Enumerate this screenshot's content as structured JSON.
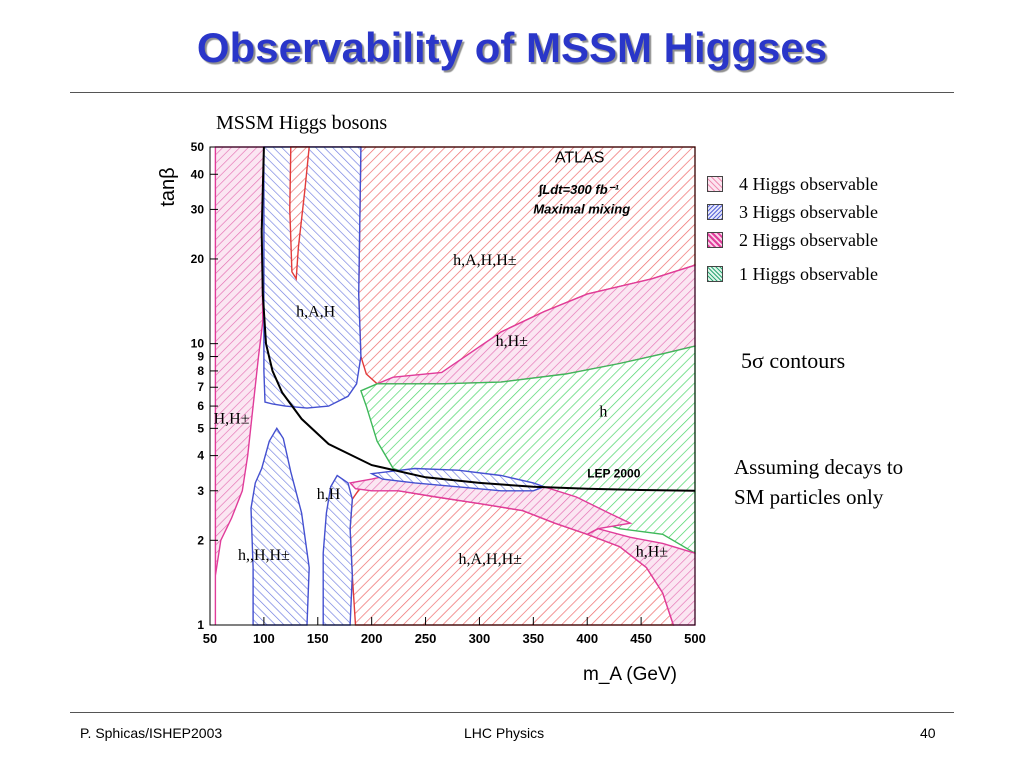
{
  "slide": {
    "title": "Observability of MSSM Higgses",
    "footer_left": "P. Sphicas/ISHEP2003",
    "footer_center": "LHC Physics",
    "footer_right": "40"
  },
  "plot_header": "MSSM  Higgs  bosons",
  "side": {
    "contours": "5σ contours",
    "note": "Assuming decays to SM particles only"
  },
  "legend": [
    {
      "label": "4 Higgs observable",
      "color": "#f08fb4"
    },
    {
      "label": "3 Higgs observable",
      "color": "#5a66d8"
    },
    {
      "label": "2 Higgs observable",
      "color": "#e03c9a"
    },
    {
      "label": "1 Higgs observable",
      "color": "#2fa877"
    }
  ],
  "chart_data": {
    "type": "area",
    "xlabel": "m_A (GeV)",
    "ylabel": "tanβ",
    "xlim": [
      50,
      500
    ],
    "ylim": [
      1,
      50
    ],
    "yscale": "log",
    "xticks": [
      50,
      100,
      150,
      200,
      250,
      300,
      350,
      400,
      450,
      500
    ],
    "yticks": [
      1,
      2,
      3,
      4,
      5,
      6,
      7,
      8,
      9,
      10,
      20,
      30,
      40,
      50
    ],
    "annotation": {
      "experiment": "ATLAS",
      "luminosity": "∫Ldt=300 fb⁻¹",
      "scenario": "Maximal mixing",
      "lep_label": "LEP 2000"
    },
    "region_labels": [
      {
        "text": "h,A,H,H±",
        "x": 305,
        "y": 19
      },
      {
        "text": "h,A,H",
        "x": 148,
        "y": 12.5
      },
      {
        "text": "h,H±",
        "x": 330,
        "y": 9.8
      },
      {
        "text": "h",
        "x": 415,
        "y": 5.5
      },
      {
        "text": "H,H±",
        "x": 70,
        "y": 5.2
      },
      {
        "text": "h,H",
        "x": 160,
        "y": 2.8
      },
      {
        "text": "h,,H,H±",
        "x": 100,
        "y": 1.7
      },
      {
        "text": "h,A,H,H±",
        "x": 310,
        "y": 1.65
      },
      {
        "text": "h,H±",
        "x": 460,
        "y": 1.75
      }
    ],
    "series": [
      {
        "name": "LEP 2000",
        "points": [
          [
            100,
            50
          ],
          [
            98,
            25
          ],
          [
            99,
            15
          ],
          [
            102,
            10
          ],
          [
            108,
            8
          ],
          [
            117,
            6.7
          ],
          [
            135,
            5.4
          ],
          [
            160,
            4.4
          ],
          [
            200,
            3.7
          ],
          [
            250,
            3.35
          ],
          [
            300,
            3.2
          ],
          [
            350,
            3.1
          ],
          [
            400,
            3.05
          ],
          [
            450,
            3.02
          ],
          [
            500,
            3.0
          ]
        ]
      }
    ]
  }
}
